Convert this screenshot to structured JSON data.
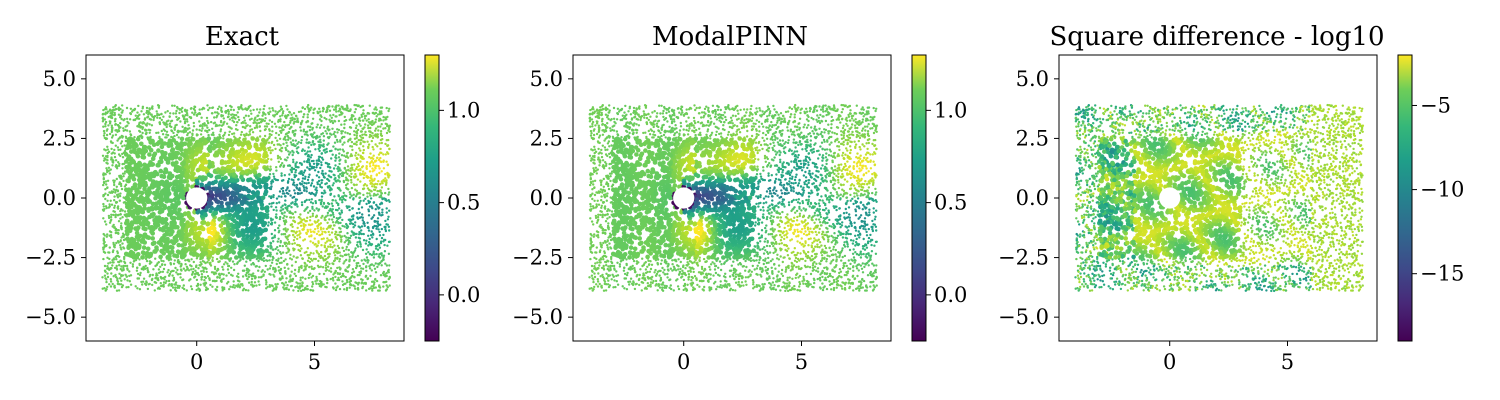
{
  "figure": {
    "panels": [
      {
        "title": "Exact",
        "colorbar": {
          "colormap": "viridis",
          "range": [
            -0.25,
            1.3
          ],
          "ticks": [
            0.0,
            0.5,
            1.0
          ],
          "tick_labels": [
            "0.0",
            "0.5",
            "1.0"
          ]
        }
      },
      {
        "title": "ModalPINN",
        "colorbar": {
          "colormap": "viridis",
          "range": [
            -0.25,
            1.3
          ],
          "ticks": [
            0.0,
            0.5,
            1.0
          ],
          "tick_labels": [
            "0.0",
            "0.5",
            "1.0"
          ]
        }
      },
      {
        "title": "Square difference - log10",
        "colorbar": {
          "colormap": "viridis",
          "range": [
            -19,
            -2
          ],
          "ticks": [
            -15,
            -10,
            -5
          ],
          "tick_labels": [
            "−15",
            "−10",
            "−5"
          ]
        }
      }
    ],
    "x_axis": {
      "range": [
        -4.7,
        8.8
      ],
      "ticks": [
        0,
        5
      ],
      "tick_labels": [
        "0",
        "5"
      ]
    },
    "y_axis": {
      "range": [
        -6,
        6
      ],
      "ticks": [
        -5,
        -2.5,
        0,
        2.5,
        5
      ],
      "tick_labels": [
        "−5.0",
        "−2.5",
        "0.0",
        "2.5",
        "5.0"
      ]
    }
  },
  "chart_data": [
    {
      "type": "scatter",
      "title": "Exact",
      "description_of_values": "flow field sampled on scattered points around a cylinder at (0,0) radius ~0.4",
      "x_range": [
        -4,
        8
      ],
      "y_range": [
        -4,
        4
      ],
      "value_range": [
        -0.25,
        1.3
      ],
      "cylinder": {
        "center": [
          0,
          0
        ],
        "radius": 0.4
      },
      "grid": false
    },
    {
      "type": "scatter",
      "title": "ModalPINN",
      "x_range": [
        -4,
        8
      ],
      "y_range": [
        -4,
        4
      ],
      "value_range": [
        -0.25,
        1.3
      ],
      "cylinder": {
        "center": [
          0,
          0
        ],
        "radius": 0.4
      },
      "grid": false
    },
    {
      "type": "scatter",
      "title": "Square difference - log10",
      "x_range": [
        -4,
        8
      ],
      "y_range": [
        -4,
        4
      ],
      "value_range": [
        -19,
        -2
      ],
      "cylinder": {
        "center": [
          0,
          0
        ],
        "radius": 0.4
      },
      "grid": false
    }
  ]
}
